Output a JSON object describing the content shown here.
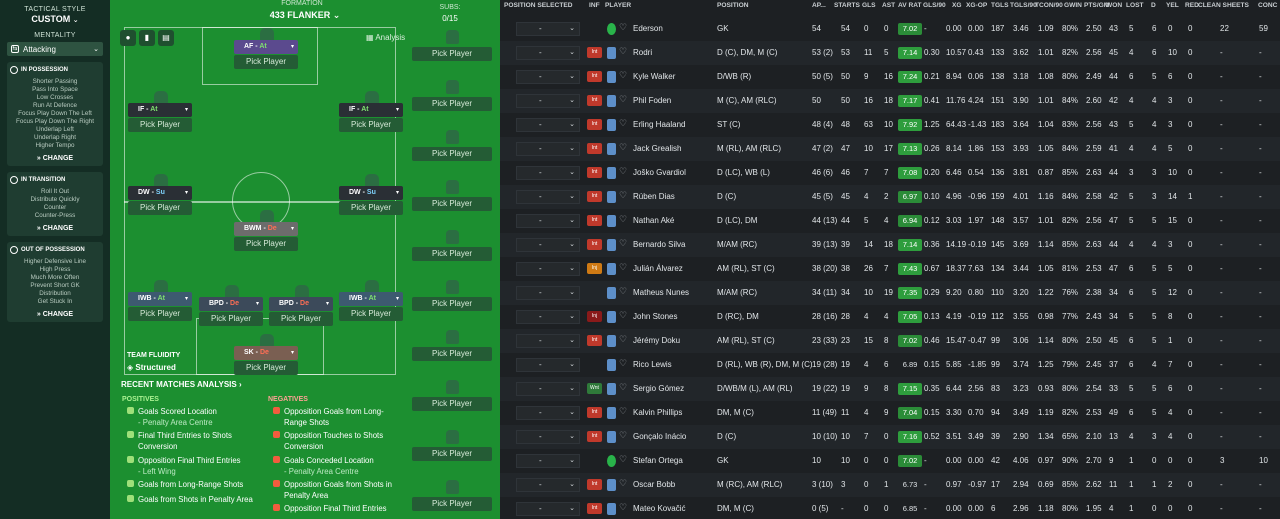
{
  "tactics": {
    "style_label": "TACTICAL STYLE",
    "style_value": "CUSTOM",
    "mentality_label": "MENTALITY",
    "mentality_value": "Attacking",
    "in_possession": {
      "title": "IN POSSESSION",
      "items": [
        "Shorter Passing",
        "Pass Into Space",
        "Low Crosses",
        "Run At Defence",
        "Focus Play Down The Left",
        "Focus Play Down The Right",
        "Underlap Left",
        "Underlap Right",
        "Higher Tempo"
      ],
      "change": "CHANGE"
    },
    "in_transition": {
      "title": "IN TRANSITION",
      "items": [
        "Roll It Out",
        "Distribute Quickly",
        "Counter",
        "Counter-Press"
      ],
      "change": "CHANGE"
    },
    "out_of_possession": {
      "title": "OUT OF POSSESSION",
      "items": [
        "Higher Defensive Line",
        "High Press",
        "Much More Often",
        "Prevent Short GK",
        "Distribution",
        "Get Stuck In"
      ],
      "change": "CHANGE"
    }
  },
  "formation": {
    "label": "FORMATION",
    "value": "433 FLANKER",
    "subs_label": "SUBS:",
    "subs_value": "0/15",
    "analysis": "Analysis",
    "pick": "Pick Player",
    "players": [
      {
        "role": "AF",
        "duty": "At"
      },
      {
        "role": "IF",
        "duty": "At"
      },
      {
        "role": "IF",
        "duty": "At"
      },
      {
        "role": "DW",
        "duty": "Su"
      },
      {
        "role": "DW",
        "duty": "Su"
      },
      {
        "role": "BWM",
        "duty": "De"
      },
      {
        "role": "IWB",
        "duty": "At"
      },
      {
        "role": "BPD",
        "duty": "De"
      },
      {
        "role": "BPD",
        "duty": "De"
      },
      {
        "role": "IWB",
        "duty": "At"
      },
      {
        "role": "SK",
        "duty": "De"
      }
    ],
    "fluidity_label": "TEAM FLUIDITY",
    "fluidity_value": "Structured"
  },
  "analysis": {
    "title": "RECENT MATCHES ANALYSIS",
    "positives_label": "POSITIVES",
    "negatives_label": "NEGATIVES",
    "positives": [
      {
        "text": "Goals Scored Location",
        "sub": "- Penalty Area Centre"
      },
      {
        "text": "Final Third Entries to Shots Conversion",
        "sub": ""
      },
      {
        "text": "Opposition Final Third Entries",
        "sub": "- Left Wing"
      },
      {
        "text": "Goals from Long-Range Shots",
        "sub": ""
      },
      {
        "text": "Goals from Shots in Penalty Area",
        "sub": ""
      }
    ],
    "negatives": [
      {
        "text": "Opposition Goals from Long-Range Shots",
        "sub": ""
      },
      {
        "text": "Opposition Touches to Shots Conversion",
        "sub": ""
      },
      {
        "text": "Goals Conceded Location",
        "sub": "- Penalty Area Centre"
      },
      {
        "text": "Opposition Goals from Shots in Penalty Area",
        "sub": ""
      },
      {
        "text": "Opposition Final Third Entries",
        "sub": ""
      }
    ]
  },
  "table": {
    "headers": [
      "POSITION SELECTED",
      "INF",
      "PLAYER",
      "POSITION",
      "AP...",
      "STARTS",
      "GLS",
      "AST",
      "AV RAT",
      "GLS/90",
      "XG",
      "XG-OP",
      "TGLS",
      "TGLS/90",
      "TCON/90",
      "GWIN",
      "PTS/GM",
      "WON",
      "LOST",
      "D",
      "YEL",
      "RED",
      "CLEAN SHEETS",
      "CONC"
    ],
    "rows": [
      {
        "sel": "-",
        "inf": "",
        "player": "Ederson",
        "position": "GK",
        "ap": "54",
        "starts": "54",
        "gls": "0",
        "ast": "0",
        "rat": "7.02",
        "gls90": "-",
        "xg": "0.00",
        "xgop": "0.00",
        "tgls": "187",
        "tgls90": "3.46",
        "tcon": "1.09",
        "gwin": "80%",
        "pts": "2.50",
        "won": "43",
        "lost": "5",
        "d": "6",
        "yel": "0",
        "red": "0",
        "cs": "22",
        "conc": "59",
        "gk": true
      },
      {
        "sel": "-",
        "inf": "Int",
        "player": "Rodri",
        "position": "D (C), DM, M (C)",
        "ap": "53 (2)",
        "starts": "53",
        "gls": "11",
        "ast": "5",
        "rat": "7.14",
        "gls90": "0.30",
        "xg": "10.57",
        "xgop": "0.43",
        "tgls": "133",
        "tgls90": "3.62",
        "tcon": "1.01",
        "gwin": "82%",
        "pts": "2.56",
        "won": "45",
        "lost": "4",
        "d": "6",
        "yel": "10",
        "red": "0",
        "cs": "-",
        "conc": "-"
      },
      {
        "sel": "-",
        "inf": "Int",
        "player": "Kyle Walker",
        "position": "D/WB (R)",
        "ap": "50 (5)",
        "starts": "50",
        "gls": "9",
        "ast": "16",
        "rat": "7.24",
        "gls90": "0.21",
        "xg": "8.94",
        "xgop": "0.06",
        "tgls": "138",
        "tgls90": "3.18",
        "tcon": "1.08",
        "gwin": "80%",
        "pts": "2.49",
        "won": "44",
        "lost": "6",
        "d": "5",
        "yel": "6",
        "red": "0",
        "cs": "-",
        "conc": "-"
      },
      {
        "sel": "-",
        "inf": "Int",
        "player": "Phil Foden",
        "position": "M (C), AM (RLC)",
        "ap": "50",
        "starts": "50",
        "gls": "16",
        "ast": "18",
        "rat": "7.17",
        "gls90": "0.41",
        "xg": "11.76",
        "xgop": "4.24",
        "tgls": "151",
        "tgls90": "3.90",
        "tcon": "1.01",
        "gwin": "84%",
        "pts": "2.60",
        "won": "42",
        "lost": "4",
        "d": "4",
        "yel": "3",
        "red": "0",
        "cs": "-",
        "conc": "-"
      },
      {
        "sel": "-",
        "inf": "Int",
        "player": "Erling Haaland",
        "position": "ST (C)",
        "ap": "48 (4)",
        "starts": "48",
        "gls": "63",
        "ast": "10",
        "rat": "7.92",
        "gls90": "1.25",
        "xg": "64.43",
        "xgop": "-1.43",
        "tgls": "183",
        "tgls90": "3.64",
        "tcon": "1.04",
        "gwin": "83%",
        "pts": "2.56",
        "won": "43",
        "lost": "5",
        "d": "4",
        "yel": "3",
        "red": "0",
        "cs": "-",
        "conc": "-"
      },
      {
        "sel": "-",
        "inf": "Int",
        "player": "Jack Grealish",
        "position": "M (RL), AM (RLC)",
        "ap": "47 (2)",
        "starts": "47",
        "gls": "10",
        "ast": "17",
        "rat": "7.13",
        "gls90": "0.26",
        "xg": "8.14",
        "xgop": "1.86",
        "tgls": "153",
        "tgls90": "3.93",
        "tcon": "1.05",
        "gwin": "84%",
        "pts": "2.59",
        "won": "41",
        "lost": "4",
        "d": "4",
        "yel": "5",
        "red": "0",
        "cs": "-",
        "conc": "-"
      },
      {
        "sel": "-",
        "inf": "Int",
        "player": "Joško Gvardiol",
        "position": "D (LC), WB (L)",
        "ap": "46 (6)",
        "starts": "46",
        "gls": "7",
        "ast": "7",
        "rat": "7.08",
        "gls90": "0.20",
        "xg": "6.46",
        "xgop": "0.54",
        "tgls": "136",
        "tgls90": "3.81",
        "tcon": "0.87",
        "gwin": "85%",
        "pts": "2.63",
        "won": "44",
        "lost": "3",
        "d": "3",
        "yel": "10",
        "red": "0",
        "cs": "-",
        "conc": "-"
      },
      {
        "sel": "-",
        "inf": "Int",
        "player": "Rúben Dias",
        "position": "D (C)",
        "ap": "45 (5)",
        "starts": "45",
        "gls": "4",
        "ast": "2",
        "rat": "6.97",
        "gls90": "0.10",
        "xg": "4.96",
        "xgop": "-0.96",
        "tgls": "159",
        "tgls90": "4.01",
        "tcon": "1.16",
        "gwin": "84%",
        "pts": "2.58",
        "won": "42",
        "lost": "5",
        "d": "3",
        "yel": "14",
        "red": "1",
        "cs": "-",
        "conc": "-"
      },
      {
        "sel": "-",
        "inf": "Int",
        "player": "Nathan Aké",
        "position": "D (LC), DM",
        "ap": "44 (13)",
        "starts": "44",
        "gls": "5",
        "ast": "4",
        "rat": "6.94",
        "gls90": "0.12",
        "xg": "3.03",
        "xgop": "1.97",
        "tgls": "148",
        "tgls90": "3.57",
        "tcon": "1.01",
        "gwin": "82%",
        "pts": "2.56",
        "won": "47",
        "lost": "5",
        "d": "5",
        "yel": "15",
        "red": "0",
        "cs": "-",
        "conc": "-"
      },
      {
        "sel": "-",
        "inf": "Int",
        "player": "Bernardo Silva",
        "position": "M/AM (RC)",
        "ap": "39 (13)",
        "starts": "39",
        "gls": "14",
        "ast": "18",
        "rat": "7.14",
        "gls90": "0.36",
        "xg": "14.19",
        "xgop": "-0.19",
        "tgls": "145",
        "tgls90": "3.69",
        "tcon": "1.14",
        "gwin": "85%",
        "pts": "2.63",
        "won": "44",
        "lost": "4",
        "d": "4",
        "yel": "3",
        "red": "0",
        "cs": "-",
        "conc": "-"
      },
      {
        "sel": "-",
        "inf": "Inj",
        "player": "Julián Álvarez",
        "position": "AM (RL), ST (C)",
        "ap": "38 (20)",
        "starts": "38",
        "gls": "26",
        "ast": "7",
        "rat": "7.43",
        "gls90": "0.67",
        "xg": "18.37",
        "xgop": "7.63",
        "tgls": "134",
        "tgls90": "3.44",
        "tcon": "1.05",
        "gwin": "81%",
        "pts": "2.53",
        "won": "47",
        "lost": "6",
        "d": "5",
        "yel": "5",
        "red": "0",
        "cs": "-",
        "conc": "-"
      },
      {
        "sel": "-",
        "inf": "",
        "player": "Matheus Nunes",
        "position": "M/AM (RC)",
        "ap": "34 (11)",
        "starts": "34",
        "gls": "10",
        "ast": "19",
        "rat": "7.35",
        "gls90": "0.29",
        "xg": "9.20",
        "xgop": "0.80",
        "tgls": "110",
        "tgls90": "3.20",
        "tcon": "1.22",
        "gwin": "76%",
        "pts": "2.38",
        "won": "34",
        "lost": "6",
        "d": "5",
        "yel": "12",
        "red": "0",
        "cs": "-",
        "conc": "-"
      },
      {
        "sel": "-",
        "inf": "Inj",
        "player": "John Stones",
        "position": "D (RC), DM",
        "ap": "28 (16)",
        "starts": "28",
        "gls": "4",
        "ast": "4",
        "rat": "7.05",
        "gls90": "0.13",
        "xg": "4.19",
        "xgop": "-0.19",
        "tgls": "112",
        "tgls90": "3.55",
        "tcon": "0.98",
        "gwin": "77%",
        "pts": "2.43",
        "won": "34",
        "lost": "5",
        "d": "5",
        "yel": "8",
        "red": "0",
        "cs": "-",
        "conc": "-"
      },
      {
        "sel": "-",
        "inf": "Int",
        "player": "Jérémy Doku",
        "position": "AM (RL), ST (C)",
        "ap": "23 (33)",
        "starts": "23",
        "gls": "15",
        "ast": "8",
        "rat": "7.02",
        "gls90": "0.46",
        "xg": "15.47",
        "xgop": "-0.47",
        "tgls": "99",
        "tgls90": "3.06",
        "tcon": "1.14",
        "gwin": "80%",
        "pts": "2.50",
        "won": "45",
        "lost": "6",
        "d": "5",
        "yel": "1",
        "red": "0",
        "cs": "-",
        "conc": "-"
      },
      {
        "sel": "-",
        "inf": "",
        "player": "Rico Lewis",
        "position": "D (RL), WB (R), DM, M (C)",
        "ap": "19 (28)",
        "starts": "19",
        "gls": "4",
        "ast": "6",
        "rat": "6.89",
        "gls90": "0.15",
        "xg": "5.85",
        "xgop": "-1.85",
        "tgls": "99",
        "tgls90": "3.74",
        "tcon": "1.25",
        "gwin": "79%",
        "pts": "2.45",
        "won": "37",
        "lost": "6",
        "d": "4",
        "yel": "7",
        "red": "0",
        "cs": "-",
        "conc": "-"
      },
      {
        "sel": "-",
        "inf": "Wnt",
        "player": "Sergio Gómez",
        "position": "D/WB/M (L), AM (RL)",
        "ap": "19 (22)",
        "starts": "19",
        "gls": "9",
        "ast": "8",
        "rat": "7.15",
        "gls90": "0.35",
        "xg": "6.44",
        "xgop": "2.56",
        "tgls": "83",
        "tgls90": "3.23",
        "tcon": "0.93",
        "gwin": "80%",
        "pts": "2.54",
        "won": "33",
        "lost": "5",
        "d": "5",
        "yel": "6",
        "red": "0",
        "cs": "-",
        "conc": "-"
      },
      {
        "sel": "-",
        "inf": "Int",
        "player": "Kalvin Phillips",
        "position": "DM, M (C)",
        "ap": "11 (49)",
        "starts": "11",
        "gls": "4",
        "ast": "9",
        "rat": "7.04",
        "gls90": "0.15",
        "xg": "3.30",
        "xgop": "0.70",
        "tgls": "94",
        "tgls90": "3.49",
        "tcon": "1.19",
        "gwin": "82%",
        "pts": "2.53",
        "won": "49",
        "lost": "6",
        "d": "5",
        "yel": "4",
        "red": "0",
        "cs": "-",
        "conc": "-"
      },
      {
        "sel": "-",
        "inf": "Int",
        "player": "Gonçalo Inácio",
        "position": "D (C)",
        "ap": "10 (10)",
        "starts": "10",
        "gls": "7",
        "ast": "0",
        "rat": "7.16",
        "gls90": "0.52",
        "xg": "3.51",
        "xgop": "3.49",
        "tgls": "39",
        "tgls90": "2.90",
        "tcon": "1.34",
        "gwin": "65%",
        "pts": "2.10",
        "won": "13",
        "lost": "4",
        "d": "3",
        "yel": "4",
        "red": "0",
        "cs": "-",
        "conc": "-"
      },
      {
        "sel": "-",
        "inf": "",
        "player": "Stefan Ortega",
        "position": "GK",
        "ap": "10",
        "starts": "10",
        "gls": "0",
        "ast": "0",
        "rat": "7.02",
        "gls90": "-",
        "xg": "0.00",
        "xgop": "0.00",
        "tgls": "42",
        "tgls90": "4.06",
        "tcon": "0.97",
        "gwin": "90%",
        "pts": "2.70",
        "won": "9",
        "lost": "1",
        "d": "0",
        "yel": "0",
        "red": "0",
        "cs": "3",
        "conc": "10",
        "gk": true
      },
      {
        "sel": "-",
        "inf": "Int",
        "player": "Oscar Bobb",
        "position": "M (RC), AM (RLC)",
        "ap": "3 (10)",
        "starts": "3",
        "gls": "0",
        "ast": "1",
        "rat": "6.73",
        "gls90": "-",
        "xg": "0.97",
        "xgop": "-0.97",
        "tgls": "17",
        "tgls90": "2.94",
        "tcon": "0.69",
        "gwin": "85%",
        "pts": "2.62",
        "won": "11",
        "lost": "1",
        "d": "1",
        "yel": "2",
        "red": "0",
        "cs": "-",
        "conc": "-"
      },
      {
        "sel": "-",
        "inf": "Int",
        "player": "Mateo Kovačić",
        "position": "DM, M (C)",
        "ap": "0 (5)",
        "starts": "-",
        "gls": "0",
        "ast": "0",
        "rat": "6.85",
        "gls90": "-",
        "xg": "0.00",
        "xgop": "0.00",
        "tgls": "6",
        "tgls90": "2.96",
        "tcon": "1.18",
        "gwin": "80%",
        "pts": "1.95",
        "won": "4",
        "lost": "1",
        "d": "0",
        "yel": "0",
        "red": "0",
        "cs": "-",
        "conc": "-"
      }
    ]
  }
}
